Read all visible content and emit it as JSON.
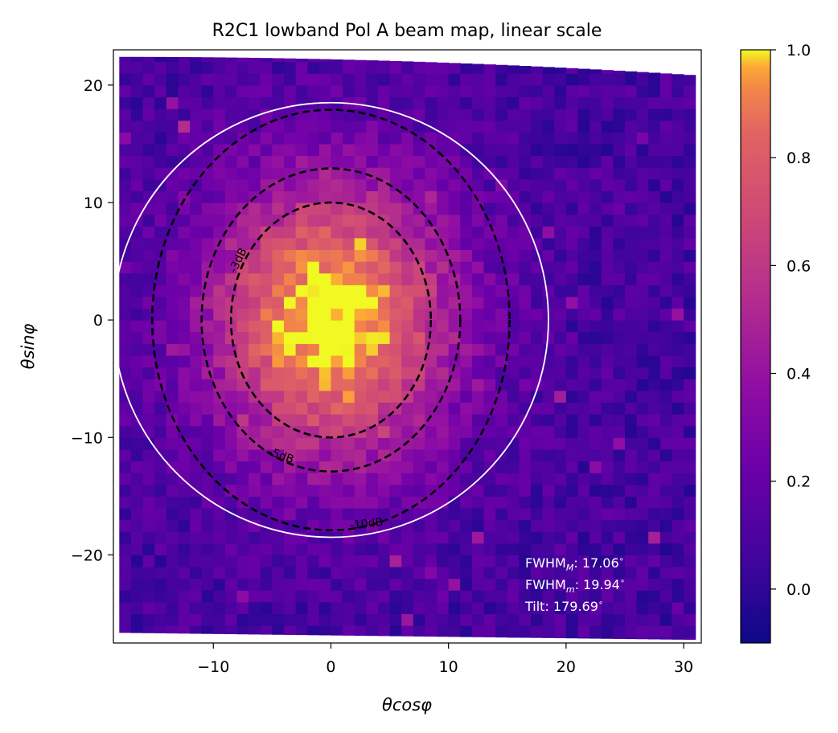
{
  "chart_data": {
    "type": "heatmap",
    "title": "R2C1 lowband Pol A beam map, linear scale",
    "xlabel": "θcosφ",
    "ylabel": "θsinφ",
    "xlim": [
      -18.5,
      31.5
    ],
    "ylim": [
      -27.5,
      23
    ],
    "x_ticks": [
      -10,
      0,
      10,
      20,
      30
    ],
    "y_ticks": [
      20,
      10,
      0,
      -10,
      -20
    ],
    "x_tick_labels": [
      "−10",
      "0",
      "10",
      "20",
      "30"
    ],
    "y_tick_labels": [
      "20",
      "10",
      "0",
      "−10",
      "−20"
    ],
    "colormap": "plasma",
    "colorbar": {
      "min": -0.1,
      "max": 1.0,
      "ticks": [
        1.0,
        0.8,
        0.6,
        0.4,
        0.2,
        0.0
      ],
      "tick_labels": [
        "1.0",
        "0.8",
        "0.6",
        "0.4",
        "0.2",
        "0.0"
      ]
    },
    "beam_model": {
      "center": [
        0,
        0
      ],
      "peak": 1.0,
      "sigma_x_deg": 7.25,
      "sigma_y_deg": 8.47,
      "noise_floor": 0.08,
      "grid_step_deg": 1.0
    },
    "contours": [
      {
        "label": "-3dB",
        "rx": 8.5,
        "ry": 10.0,
        "style": "dashed",
        "color": "#000000"
      },
      {
        "label": "-5dB",
        "rx": 11.0,
        "ry": 12.9,
        "style": "dashed",
        "color": "#000000"
      },
      {
        "label": "-10dB",
        "rx": 15.2,
        "ry": 17.9,
        "style": "dashed",
        "color": "#000000"
      }
    ],
    "reference_circle": {
      "radius": 18.5,
      "color": "#ffffff",
      "style": "solid"
    },
    "annotations": {
      "fwhm_major_prefix": "FWHM",
      "fwhm_major_sub": "M",
      "fwhm_major_value": ": 17.06",
      "fwhm_minor_prefix": "FWHM",
      "fwhm_minor_sub": "m",
      "fwhm_minor_value": ": 19.94",
      "tilt_value": "Tilt: 179.69",
      "degree_symbol": "∘"
    }
  }
}
